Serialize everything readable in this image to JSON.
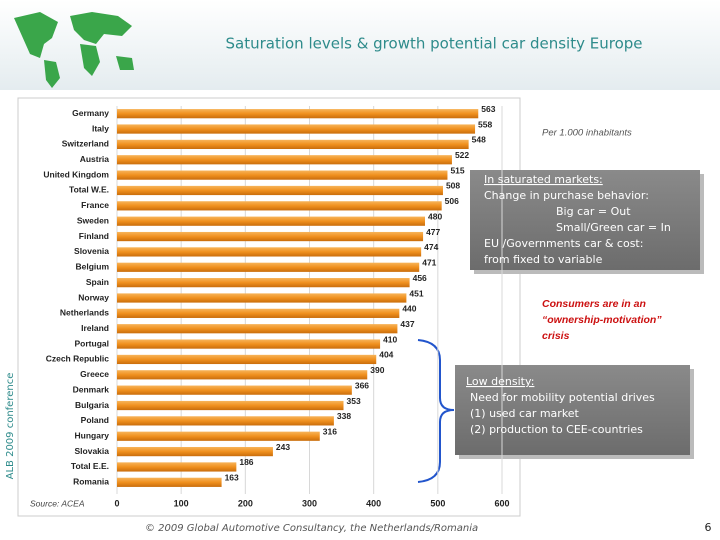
{
  "chart_data": {
    "type": "bar",
    "orientation": "horizontal",
    "title": "Saturation levels & growth potential car density Europe",
    "categories": [
      "Germany",
      "Italy",
      "Switzerland",
      "Austria",
      "United Kingdom",
      "Total W.E.",
      "France",
      "Sweden",
      "Finland",
      "Slovenia",
      "Belgium",
      "Spain",
      "Norway",
      "Netherlands",
      "Ireland",
      "Portugal",
      "Czech Republic",
      "Greece",
      "Denmark",
      "Bulgaria",
      "Poland",
      "Hungary",
      "Slovakia",
      "Total E.E.",
      "Romania"
    ],
    "values": [
      563,
      558,
      548,
      522,
      515,
      508,
      506,
      480,
      477,
      474,
      471,
      456,
      451,
      440,
      437,
      410,
      404,
      390,
      366,
      353,
      338,
      316,
      243,
      186,
      163
    ],
    "color": "#f0901e",
    "xlim": [
      0,
      600
    ],
    "xticks": [
      0,
      100,
      200,
      300,
      400,
      500,
      600
    ],
    "grid": true,
    "unit_note": "Per 1.000 inhabitants",
    "source": "Source: ACEA",
    "box1": [
      "In saturated markets:",
      "Change in purchase behavior:",
      "Big car = Out",
      "Small/Green car = In",
      "EU /Governments car & cost:",
      "from fixed to variable"
    ],
    "crisis_note": [
      "Consumers are in an",
      "“ownership-motivation”",
      "crisis"
    ],
    "box2": [
      "Low density:",
      "Need for mobility potential drives",
      "(1) used car market",
      "(2) production to CEE-countries"
    ]
  },
  "slide": {
    "side_label": "ALB 2009 conference",
    "footer": "© 2009 Global Automotive Consultancy, the Netherlands/Romania",
    "page_number": "6"
  }
}
